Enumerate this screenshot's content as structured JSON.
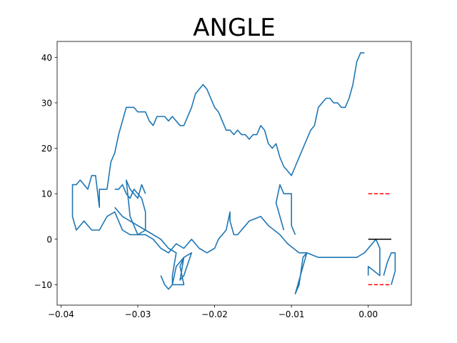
{
  "chart_data": {
    "type": "line",
    "title": "ANGLE",
    "xlabel": "",
    "ylabel": "",
    "xlim": [
      -0.0405,
      0.0056
    ],
    "ylim": [
      -14.5,
      43.5
    ],
    "grid": false,
    "xticks": [
      -0.04,
      -0.03,
      -0.02,
      -0.01,
      0.0
    ],
    "xtick_labels": [
      "−0.04",
      "−0.03",
      "−0.02",
      "−0.01",
      "0.00"
    ],
    "yticks": [
      -10,
      0,
      10,
      20,
      30,
      40
    ],
    "ytick_labels": [
      "−10",
      "0",
      "10",
      "20",
      "30",
      "40"
    ],
    "series": [
      {
        "color": "#1f77b4",
        "style": "solid",
        "points": [
          [
            0.0,
            -8
          ],
          [
            0.0,
            -6
          ],
          [
            0.0015,
            -8
          ],
          [
            0.0015,
            -2
          ],
          [
            0.001,
            0
          ],
          [
            -0.0005,
            -3
          ],
          [
            -0.0015,
            -4
          ],
          [
            -0.0025,
            -4
          ],
          [
            -0.004,
            -4
          ],
          [
            -0.0065,
            -4
          ],
          [
            -0.008,
            -3
          ],
          [
            -0.0085,
            -4
          ],
          [
            -0.009,
            -10
          ],
          [
            -0.0095,
            -12
          ],
          [
            -0.008,
            -3
          ],
          [
            -0.009,
            -3
          ],
          [
            -0.0105,
            -1
          ],
          [
            -0.0115,
            1
          ],
          [
            -0.013,
            3
          ],
          [
            -0.014,
            5
          ],
          [
            -0.0155,
            4
          ],
          [
            -0.016,
            3
          ],
          [
            -0.017,
            1
          ],
          [
            -0.0175,
            1
          ],
          [
            -0.018,
            4
          ],
          [
            -0.018,
            6
          ],
          [
            -0.0185,
            2
          ],
          [
            -0.0195,
            0
          ],
          [
            -0.02,
            -2
          ],
          [
            -0.021,
            -3
          ],
          [
            -0.022,
            -2
          ],
          [
            -0.023,
            0
          ],
          [
            -0.024,
            -2
          ],
          [
            -0.025,
            -1
          ],
          [
            -0.026,
            -3
          ],
          [
            -0.027,
            -2
          ],
          [
            -0.028,
            0
          ],
          [
            -0.029,
            1
          ],
          [
            -0.03,
            1
          ],
          [
            -0.031,
            1
          ],
          [
            -0.032,
            2
          ],
          [
            -0.033,
            6
          ],
          [
            -0.034,
            5
          ],
          [
            -0.035,
            2
          ],
          [
            -0.036,
            2
          ],
          [
            -0.037,
            4
          ],
          [
            -0.038,
            2
          ],
          [
            -0.0385,
            5
          ],
          [
            -0.0385,
            12
          ],
          [
            -0.038,
            12
          ],
          [
            -0.0375,
            13
          ],
          [
            -0.0365,
            11
          ],
          [
            -0.036,
            14
          ],
          [
            -0.0355,
            14
          ],
          [
            -0.035,
            7
          ],
          [
            -0.035,
            11
          ],
          [
            -0.034,
            11
          ],
          [
            -0.0335,
            17
          ],
          [
            -0.033,
            19
          ],
          [
            -0.0325,
            23
          ],
          [
            -0.032,
            26
          ],
          [
            -0.0315,
            29
          ],
          [
            -0.0305,
            29
          ],
          [
            -0.03,
            28
          ],
          [
            -0.029,
            28
          ],
          [
            -0.0285,
            26
          ],
          [
            -0.028,
            25
          ],
          [
            -0.0275,
            27
          ],
          [
            -0.0265,
            27
          ],
          [
            -0.026,
            26
          ],
          [
            -0.0255,
            27
          ],
          [
            -0.0245,
            25
          ],
          [
            -0.024,
            25
          ],
          [
            -0.023,
            29
          ],
          [
            -0.0225,
            32
          ],
          [
            -0.0215,
            34
          ],
          [
            -0.021,
            33
          ],
          [
            -0.02,
            29
          ],
          [
            -0.0195,
            28
          ],
          [
            -0.0185,
            24
          ],
          [
            -0.018,
            24
          ],
          [
            -0.0175,
            23
          ],
          [
            -0.017,
            24
          ],
          [
            -0.0165,
            23
          ],
          [
            -0.016,
            23
          ],
          [
            -0.0155,
            22
          ],
          [
            -0.015,
            23
          ],
          [
            -0.0145,
            23
          ],
          [
            -0.014,
            25
          ],
          [
            -0.0135,
            24
          ],
          [
            -0.013,
            21
          ],
          [
            -0.0125,
            20
          ],
          [
            -0.012,
            21
          ],
          [
            -0.0115,
            18
          ],
          [
            -0.011,
            16
          ],
          [
            -0.01,
            14
          ],
          [
            -0.0095,
            16
          ],
          [
            -0.009,
            18
          ],
          [
            -0.0075,
            24
          ],
          [
            -0.007,
            25
          ],
          [
            -0.0065,
            29
          ],
          [
            -0.0055,
            31
          ],
          [
            -0.005,
            31
          ],
          [
            -0.0045,
            30
          ],
          [
            -0.004,
            30
          ],
          [
            -0.0035,
            29
          ],
          [
            -0.003,
            29
          ],
          [
            -0.0025,
            31
          ],
          [
            -0.002,
            34
          ],
          [
            -0.0015,
            39
          ],
          [
            -0.001,
            41
          ],
          [
            -0.0005,
            41
          ]
        ]
      },
      {
        "color": "#1f77b4",
        "style": "solid",
        "points": [
          [
            -0.033,
            7
          ],
          [
            -0.032,
            5
          ],
          [
            -0.031,
            4
          ],
          [
            -0.03,
            3
          ],
          [
            -0.029,
            2
          ],
          [
            -0.027,
            0
          ],
          [
            -0.026,
            -2
          ],
          [
            -0.025,
            -3
          ],
          [
            -0.0255,
            -8
          ],
          [
            -0.0255,
            -10
          ],
          [
            -0.0245,
            -10
          ],
          [
            -0.024,
            -10
          ],
          [
            -0.0245,
            -6
          ],
          [
            -0.024,
            -4
          ],
          [
            -0.0245,
            -9
          ],
          [
            -0.024,
            -8
          ],
          [
            -0.023,
            -3
          ],
          [
            -0.024,
            -4
          ],
          [
            -0.025,
            -6
          ],
          [
            -0.0255,
            -10
          ],
          [
            -0.026,
            -11
          ],
          [
            -0.0265,
            -10
          ],
          [
            -0.027,
            -8
          ]
        ]
      },
      {
        "color": "#1f77b4",
        "style": "solid",
        "points": [
          [
            -0.033,
            11
          ],
          [
            -0.0325,
            11
          ],
          [
            -0.032,
            12
          ],
          [
            -0.0315,
            10
          ],
          [
            -0.031,
            9
          ],
          [
            -0.0305,
            11
          ],
          [
            -0.03,
            10
          ],
          [
            -0.0295,
            9
          ],
          [
            -0.029,
            6
          ],
          [
            -0.029,
            2
          ],
          [
            -0.03,
            1
          ],
          [
            -0.0305,
            3
          ],
          [
            -0.031,
            5
          ],
          [
            -0.0315,
            13
          ],
          [
            -0.031,
            11
          ],
          [
            -0.03,
            9
          ],
          [
            -0.0295,
            12
          ],
          [
            -0.029,
            10
          ]
        ]
      },
      {
        "color": "#1f77b4",
        "style": "solid",
        "points": [
          [
            -0.011,
            2
          ],
          [
            -0.0115,
            5
          ],
          [
            -0.012,
            8
          ],
          [
            -0.0115,
            12
          ],
          [
            -0.011,
            10
          ],
          [
            -0.01,
            10
          ],
          [
            -0.01,
            3
          ],
          [
            -0.0095,
            1
          ]
        ]
      },
      {
        "color": "#1f77b4",
        "style": "solid",
        "points": [
          [
            0.002,
            -8
          ],
          [
            0.0025,
            -5
          ],
          [
            0.003,
            -3
          ],
          [
            0.0035,
            -3
          ],
          [
            0.0035,
            -7
          ],
          [
            0.003,
            -10
          ]
        ]
      },
      {
        "color": "#ff0000",
        "style": "dashed",
        "points": [
          [
            0.0,
            10
          ],
          [
            0.003,
            10
          ]
        ]
      },
      {
        "color": "#ff0000",
        "style": "dashed",
        "points": [
          [
            0.0,
            -10
          ],
          [
            0.003,
            -10
          ]
        ]
      },
      {
        "color": "#000000",
        "style": "solid",
        "points": [
          [
            0.0,
            0
          ],
          [
            0.003,
            0
          ]
        ]
      }
    ]
  }
}
